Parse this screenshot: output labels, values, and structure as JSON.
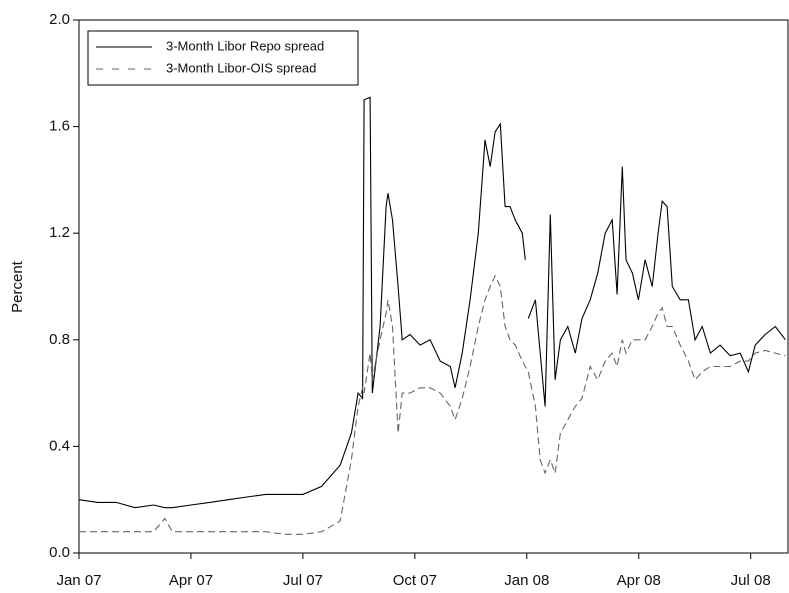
{
  "chart_data": {
    "type": "line",
    "y_label": "Percent",
    "x": [
      0,
      0.5,
      1,
      1.5,
      2,
      2.3,
      2.5,
      3,
      3.5,
      4,
      4.5,
      5,
      5.5,
      6,
      6.5,
      7,
      7.3,
      7.48,
      7.6,
      7.64,
      7.8,
      7.86,
      8.07,
      8.23,
      8.28,
      8.4,
      8.55,
      8.66,
      8.87,
      9.14,
      9.41,
      9.68,
      9.95,
      10.08,
      10.27,
      10.48,
      10.7,
      10.88,
      11.02,
      11.15,
      11.29,
      11.42,
      11.55,
      11.69,
      11.88,
      11.96,
      12,
      12.04,
      12.23,
      12.36,
      12.49,
      12.63,
      12.76,
      12.9,
      13.1,
      13.3,
      13.48,
      13.7,
      13.9,
      14.1,
      14.29,
      14.42,
      14.56,
      14.66,
      14.83,
      14.99,
      15.17,
      15.36,
      15.52,
      15.63,
      15.76,
      15.9,
      16.11,
      16.33,
      16.51,
      16.7,
      16.92,
      17.18,
      17.45,
      17.72,
      17.94,
      18.12,
      18.39,
      18.66,
      18.93
    ],
    "series": [
      {
        "name": "3-Month Libor Repo spread",
        "color": "#000000",
        "style": "solid",
        "values": [
          0.2,
          0.19,
          0.19,
          0.17,
          0.18,
          0.17,
          0.17,
          0.18,
          0.19,
          0.2,
          0.21,
          0.22,
          0.22,
          0.22,
          0.25,
          0.33,
          0.45,
          0.6,
          0.58,
          1.7,
          1.71,
          0.6,
          0.85,
          1.3,
          1.35,
          1.25,
          1.0,
          0.8,
          0.82,
          0.78,
          0.8,
          0.72,
          0.7,
          0.62,
          0.75,
          0.95,
          1.2,
          1.55,
          1.45,
          1.58,
          1.61,
          1.3,
          1.3,
          1.25,
          1.2,
          1.1,
          null,
          0.88,
          0.95,
          0.75,
          0.55,
          1.27,
          0.65,
          0.8,
          0.85,
          0.75,
          0.88,
          0.95,
          1.05,
          1.2,
          1.25,
          0.97,
          1.45,
          1.1,
          1.05,
          0.95,
          1.1,
          1.0,
          1.2,
          1.32,
          1.3,
          1.0,
          0.95,
          0.95,
          0.8,
          0.85,
          0.75,
          0.78,
          0.74,
          0.75,
          0.68,
          0.78,
          0.82,
          0.85,
          0.8
        ]
      },
      {
        "name": "3-Month Libor-OIS spread",
        "color": "#666666",
        "style": "dashed",
        "values": [
          0.08,
          0.08,
          0.08,
          0.08,
          0.08,
          0.13,
          0.08,
          0.08,
          0.08,
          0.08,
          0.08,
          0.08,
          0.07,
          0.07,
          0.08,
          0.12,
          0.35,
          0.55,
          0.62,
          0.6,
          0.75,
          0.65,
          0.8,
          0.9,
          0.95,
          0.85,
          0.45,
          0.6,
          0.6,
          0.62,
          0.62,
          0.6,
          0.55,
          0.5,
          0.58,
          0.7,
          0.85,
          0.95,
          1.0,
          1.04,
          1.0,
          0.85,
          0.8,
          0.78,
          0.72,
          0.7,
          0.69,
          0.68,
          0.55,
          0.35,
          0.3,
          0.35,
          0.3,
          0.45,
          0.5,
          0.55,
          0.58,
          0.7,
          0.65,
          0.72,
          0.75,
          0.7,
          0.8,
          0.75,
          0.8,
          0.8,
          0.8,
          0.85,
          0.9,
          0.92,
          0.85,
          0.85,
          0.78,
          0.72,
          0.65,
          0.68,
          0.7,
          0.7,
          0.7,
          0.72,
          0.72,
          0.75,
          0.76,
          0.75,
          0.74
        ]
      }
    ],
    "xlim": [
      0,
      19
    ],
    "xticks": [
      {
        "value": 0,
        "label": "Jan 07"
      },
      {
        "value": 3,
        "label": "Apr 07"
      },
      {
        "value": 6,
        "label": "Jul 07"
      },
      {
        "value": 9,
        "label": "Oct 07"
      },
      {
        "value": 12,
        "label": "Jan 08"
      },
      {
        "value": 15,
        "label": "Apr 08"
      },
      {
        "value": 18,
        "label": "Jul 08"
      }
    ],
    "ylim": [
      0,
      2
    ],
    "yticks": [
      {
        "value": 0,
        "label": "0.0"
      },
      0.4,
      0.8,
      1.2,
      1.6,
      {
        "value": 2,
        "label": "2.0"
      }
    ],
    "legend": "upper-left"
  }
}
